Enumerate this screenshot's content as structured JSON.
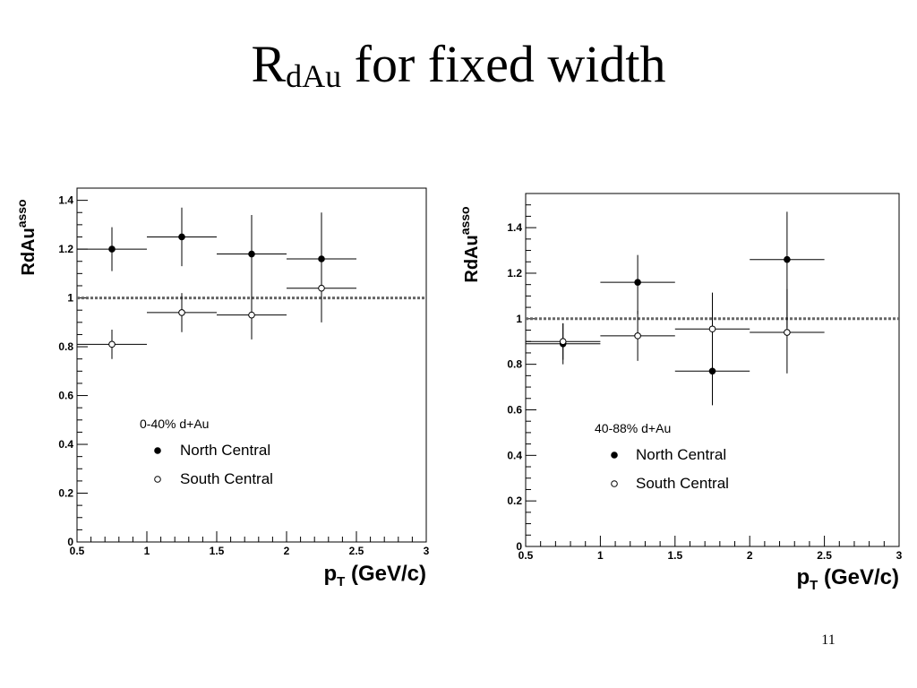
{
  "slide": {
    "title_main": "R",
    "title_sub": "dAu",
    "title_rest": " for fixed width",
    "page_number": "11"
  },
  "chart_data": [
    {
      "type": "scatter",
      "title": "",
      "xlabel_main": "p",
      "xlabel_sub": "T",
      "xlabel_unit": " (GeV/c)",
      "ylabel_main": "RdAu",
      "ylabel_sup": "asso",
      "xlim": [
        0.5,
        3
      ],
      "ylim": [
        0,
        1.45
      ],
      "x_ticks": [
        0.5,
        1,
        1.5,
        2,
        2.5,
        3
      ],
      "x_tick_labels": [
        "0.5",
        "1",
        "1.5",
        "2",
        "2.5",
        "3"
      ],
      "y_ticks": [
        0,
        0.2,
        0.4,
        0.6,
        0.8,
        1,
        1.2,
        1.4
      ],
      "y_tick_labels": [
        "0",
        "0.2",
        "0.4",
        "0.6",
        "0.8",
        "1",
        "1.2",
        "1.4"
      ],
      "reference_line": 1.0,
      "legend_title": "0-40% d+Au",
      "legend_placement": "center-left",
      "series": [
        {
          "name": "North Central",
          "marker": "filled",
          "x": [
            0.75,
            1.25,
            1.75,
            2.25
          ],
          "y": [
            1.2,
            1.25,
            1.18,
            1.16
          ],
          "x_err": [
            0.25,
            0.25,
            0.25,
            0.25
          ],
          "y_err_low": [
            0.09,
            0.12,
            0.3,
            0.25
          ],
          "y_err_high": [
            0.09,
            0.12,
            0.16,
            0.19
          ]
        },
        {
          "name": "South Central",
          "marker": "open",
          "x": [
            0.75,
            1.25,
            1.75,
            2.25
          ],
          "y": [
            0.81,
            0.94,
            0.93,
            1.04
          ],
          "x_err": [
            0.25,
            0.25,
            0.25,
            0.25
          ],
          "y_err_low": [
            0.06,
            0.08,
            0.1,
            0.14
          ],
          "y_err_high": [
            0.06,
            0.08,
            0.05,
            0.06
          ]
        }
      ]
    },
    {
      "type": "scatter",
      "title": "",
      "xlabel_main": "p",
      "xlabel_sub": "T",
      "xlabel_unit": " (GeV/c)",
      "ylabel_main": "RdAu",
      "ylabel_sup": "asso",
      "xlim": [
        0.5,
        3
      ],
      "ylim": [
        0,
        1.55
      ],
      "x_ticks": [
        0.5,
        1,
        1.5,
        2,
        2.5,
        3
      ],
      "x_tick_labels": [
        "0.5",
        "1",
        "1.5",
        "2",
        "2.5",
        "3"
      ],
      "y_ticks": [
        0,
        0.2,
        0.4,
        0.6,
        0.8,
        1,
        1.2,
        1.4
      ],
      "y_tick_labels": [
        "0",
        "0.2",
        "0.4",
        "0.6",
        "0.8",
        "1",
        "1.2",
        "1.4"
      ],
      "reference_line": 1.0,
      "legend_title": "40-88% d+Au",
      "legend_placement": "center",
      "series": [
        {
          "name": "North Central",
          "marker": "filled",
          "x": [
            0.75,
            1.25,
            1.75,
            2.25
          ],
          "y": [
            0.89,
            1.16,
            0.77,
            1.26
          ],
          "x_err": [
            0.25,
            0.25,
            0.25,
            0.25
          ],
          "y_err_low": [
            0.09,
            0.14,
            0.15,
            0.3
          ],
          "y_err_high": [
            0.09,
            0.12,
            0.15,
            0.21
          ]
        },
        {
          "name": "South Central",
          "marker": "open",
          "x": [
            0.75,
            1.25,
            1.75,
            2.25
          ],
          "y": [
            0.9,
            0.925,
            0.955,
            0.94
          ],
          "x_err": [
            0.25,
            0.25,
            0.25,
            0.25
          ],
          "y_err_low": [
            0.08,
            0.11,
            0.13,
            0.18
          ],
          "y_err_high": [
            0.08,
            0.11,
            0.16,
            0.19
          ]
        }
      ]
    }
  ]
}
